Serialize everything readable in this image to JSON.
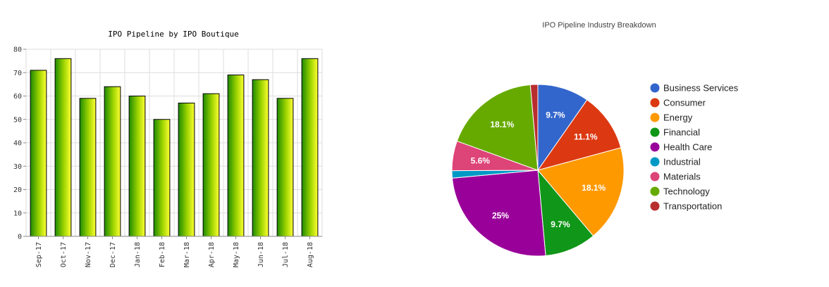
{
  "chart_data": [
    {
      "type": "bar",
      "title": "IPO Pipeline by IPO Boutique",
      "xlabel": "",
      "ylabel": "",
      "categories": [
        "Sep-17",
        "Oct-17",
        "Nov-17",
        "Dec-17",
        "Jan-18",
        "Feb-18",
        "Mar-18",
        "Apr-18",
        "May-18",
        "Jun-18",
        "Jul-18",
        "Aug-18"
      ],
      "values": [
        71,
        76,
        59,
        64,
        60,
        50,
        57,
        61,
        69,
        67,
        59,
        76
      ],
      "ylim": [
        0,
        80
      ],
      "yticks": [
        "0",
        "10",
        "20",
        "30",
        "40",
        "50",
        "60",
        "70",
        "80"
      ],
      "grid": true,
      "colors": {
        "bar_light": "#ffff33",
        "bar_dark": "#1e8a00",
        "bar_stroke": "#000000",
        "grid": "#dddddd"
      }
    },
    {
      "type": "pie",
      "title": "IPO Pipeline Industry Breakdown",
      "legend_position": "right",
      "slices": [
        {
          "name": "Business Services",
          "value": 9.7,
          "label": "9.7%",
          "color": "#3366cc"
        },
        {
          "name": "Consumer",
          "value": 11.1,
          "label": "11.1%",
          "color": "#dc3912"
        },
        {
          "name": "Energy",
          "value": 18.1,
          "label": "18.1%",
          "color": "#ff9900"
        },
        {
          "name": "Financial",
          "value": 9.7,
          "label": "9.7%",
          "color": "#109618"
        },
        {
          "name": "Health Care",
          "value": 25,
          "label": "25%",
          "color": "#990099"
        },
        {
          "name": "Industrial",
          "value": 1.4,
          "label": "",
          "color": "#0099c6"
        },
        {
          "name": "Materials",
          "value": 5.6,
          "label": "5.6%",
          "color": "#dd4477"
        },
        {
          "name": "Technology",
          "value": 18.1,
          "label": "18.1%",
          "color": "#66aa00"
        },
        {
          "name": "Transportation",
          "value": 1.4,
          "label": "",
          "color": "#b82e2e"
        }
      ]
    }
  ]
}
